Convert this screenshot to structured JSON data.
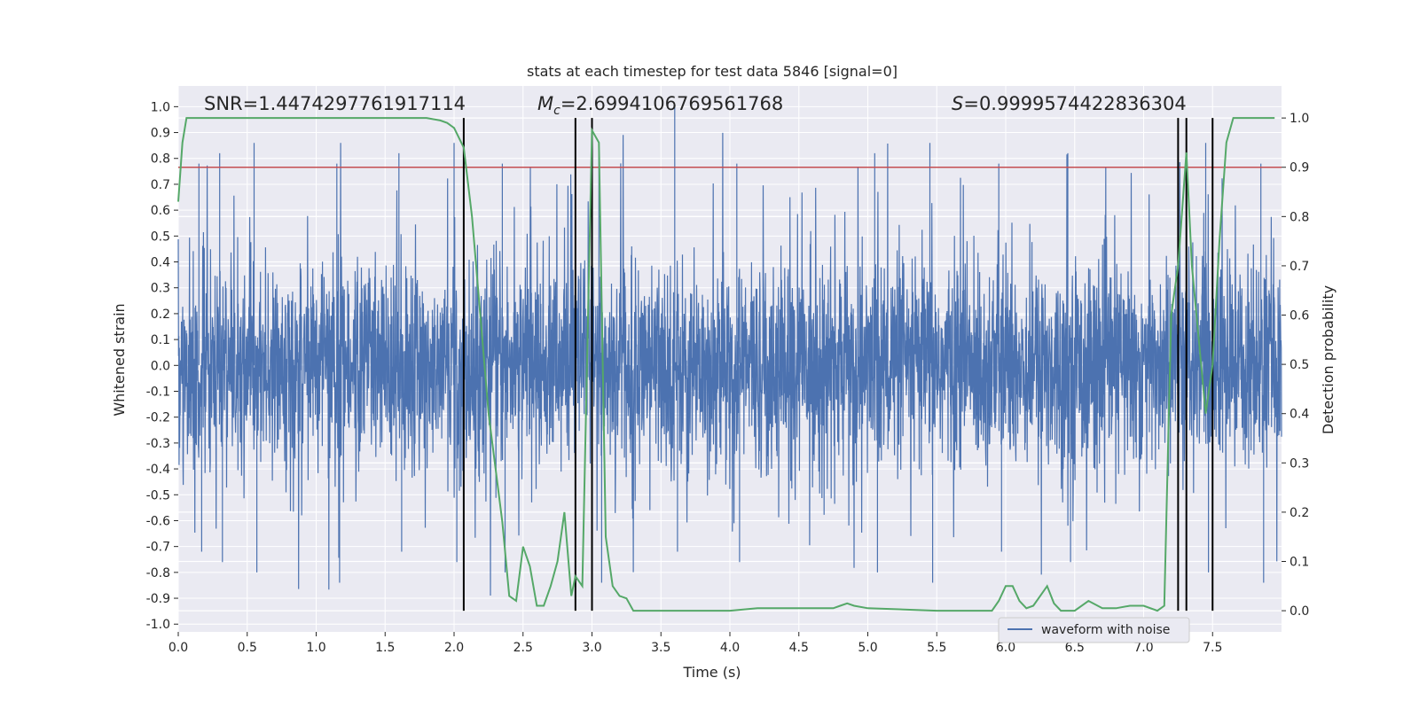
{
  "chart_data": {
    "type": "line",
    "title": "stats at each timestep for test data 5846 [signal=0]",
    "xlabel": "Time (s)",
    "ylabel": "Whitened strain",
    "y2label": "Detection probability",
    "xlim": [
      0.0,
      8.0
    ],
    "ylim": [
      -1.03,
      1.08
    ],
    "y2lim": [
      -0.043,
      1.065
    ],
    "xticks": [
      "0.0",
      "0.5",
      "1.0",
      "1.5",
      "2.0",
      "2.5",
      "3.0",
      "3.5",
      "4.0",
      "4.5",
      "5.0",
      "5.5",
      "6.0",
      "6.5",
      "7.0",
      "7.5"
    ],
    "yticks": [
      "1.0",
      "0.9",
      "0.8",
      "0.7",
      "0.6",
      "0.5",
      "0.4",
      "0.3",
      "0.2",
      "0.1",
      "0.0",
      "-0.1",
      "-0.2",
      "-0.3",
      "-0.4",
      "-0.5",
      "-0.6",
      "-0.7",
      "-0.8",
      "-0.9",
      "-1.0"
    ],
    "y2ticks": [
      "1.0",
      "0.9",
      "0.8",
      "0.7",
      "0.6",
      "0.5",
      "0.4",
      "0.3",
      "0.2",
      "0.1",
      "0.0"
    ],
    "grid": true,
    "legend_position": "lower-right",
    "legend": [
      "waveform with noise"
    ],
    "annotations": {
      "snr": "SNR=1.4474297761917114",
      "mc_symbol": "M",
      "mc_sub": "c",
      "mc_value": "=2.6994106769561768",
      "s_symbol": "S",
      "s_value": "=0.9999574422836304"
    },
    "colors": {
      "background": "#eaeaf2",
      "grid": "#ffffff",
      "waveform": "#4c72b0",
      "probability": "#55a868",
      "threshold": "#c44e52",
      "events": "#000000"
    },
    "threshold": {
      "axis": "y2",
      "value": 0.9
    },
    "event_lines_x": [
      2.07,
      2.88,
      3.0,
      7.25,
      7.31,
      7.5
    ],
    "series": [
      {
        "name": "waveform with noise",
        "axis": "y",
        "description": "whitened strain, approx. noise envelope",
        "x_range": [
          0.0,
          8.0
        ],
        "envelope_max": 1.0,
        "envelope_min": -0.91
      },
      {
        "axis": "y2",
        "x": [
          0.0,
          0.03,
          0.06,
          0.1,
          0.2,
          0.5,
          1.0,
          1.5,
          1.8,
          1.9,
          1.95,
          2.0,
          2.07,
          2.13,
          2.25,
          2.35,
          2.4,
          2.45,
          2.5,
          2.55,
          2.6,
          2.65,
          2.7,
          2.75,
          2.8,
          2.85,
          2.88,
          2.93,
          3.0,
          3.05,
          3.1,
          3.15,
          3.2,
          3.25,
          3.3,
          3.35,
          3.5,
          4.0,
          4.2,
          4.5,
          4.75,
          4.8,
          4.85,
          4.9,
          5.0,
          5.5,
          5.9,
          5.95,
          6.0,
          6.05,
          6.1,
          6.15,
          6.2,
          6.25,
          6.3,
          6.35,
          6.4,
          6.5,
          6.6,
          6.7,
          6.8,
          6.9,
          7.0,
          7.1,
          7.15,
          7.2,
          7.25,
          7.31,
          7.35,
          7.4,
          7.45,
          7.5,
          7.55,
          7.6,
          7.65,
          7.7,
          7.8,
          7.95
        ],
        "y": [
          0.83,
          0.95,
          1.0,
          1.0,
          1.0,
          1.0,
          1.0,
          1.0,
          1.0,
          0.995,
          0.99,
          0.98,
          0.94,
          0.8,
          0.4,
          0.18,
          0.03,
          0.02,
          0.13,
          0.09,
          0.01,
          0.01,
          0.05,
          0.1,
          0.2,
          0.03,
          0.07,
          0.05,
          0.975,
          0.95,
          0.15,
          0.05,
          0.03,
          0.025,
          0.0,
          0.0,
          0.0,
          0.0,
          0.005,
          0.005,
          0.005,
          0.01,
          0.015,
          0.01,
          0.005,
          0.0,
          0.0,
          0.02,
          0.05,
          0.05,
          0.02,
          0.005,
          0.01,
          0.03,
          0.05,
          0.015,
          0.0,
          0.0,
          0.02,
          0.005,
          0.005,
          0.01,
          0.01,
          0.0,
          0.01,
          0.6,
          0.7,
          0.93,
          0.7,
          0.55,
          0.4,
          0.5,
          0.75,
          0.95,
          1.0,
          1.0,
          1.0,
          1.0
        ]
      }
    ]
  }
}
